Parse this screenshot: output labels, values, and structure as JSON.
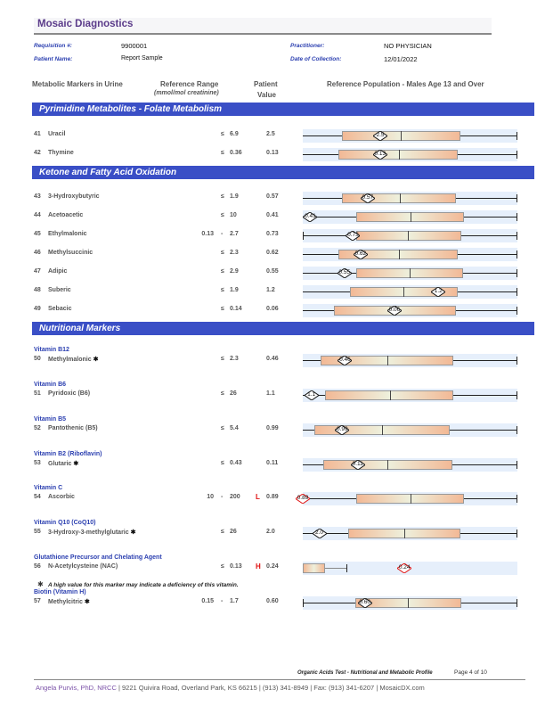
{
  "header": {
    "brand": "Mosaic Diagnostics",
    "requisition_label": "Requisition #:",
    "requisition": "9900001",
    "patient_label": "Patient Name:",
    "patient": "Report Sample",
    "practitioner_label": "Practitioner:",
    "practitioner": "NO PHYSICIAN",
    "collection_label": "Date of Collection:",
    "collection": "12/01/2022"
  },
  "columns": {
    "markers": "Metabolic Markers in Urine",
    "range": "Reference Range",
    "range_unit": "(mmol/mol creatinine)",
    "patient1": "Patient",
    "patient2": "Value",
    "population": "Reference Population - Males Age 13 and Over"
  },
  "sections": [
    {
      "title": "Pyrimidine Metabolites - Folate Metabolism"
    },
    {
      "title": "Ketone and Fatty Acid Oxidation"
    },
    {
      "title": "Nutritional Markers"
    }
  ],
  "colors": {
    "band": "#3a4fc6",
    "low_high": "#e01010",
    "brand": "#5b3b8a"
  },
  "rows": [
    {
      "num": "41",
      "name": "Uracil",
      "low": "",
      "op": "≤",
      "high": "6.9",
      "flag": "",
      "value": "2.5",
      "scale_pct": {
        "box": [
          18.4,
          73.4
        ],
        "median": 45.6,
        "marker": 36.1
      }
    },
    {
      "num": "42",
      "name": "Thymine",
      "low": "",
      "op": "≤",
      "high": "0.36",
      "flag": "",
      "value": "0.13",
      "scale_pct": {
        "box": [
          16.6,
          72.1
        ],
        "median": 44.8,
        "marker": 36
      }
    },
    {
      "num": "43",
      "name": "3-Hydroxybutyric",
      "low": "",
      "op": "≤",
      "high": "1.9",
      "flag": "",
      "value": "0.57",
      "scale_pct": {
        "box": [
          18.1,
          71.5
        ],
        "median": 45.2,
        "marker": 30.2
      }
    },
    {
      "num": "44",
      "name": "Acetoacetic",
      "low": "",
      "op": "≤",
      "high": "10",
      "flag": "",
      "value": "0.41",
      "scale_pct": {
        "box": [
          24.8,
          75
        ],
        "median": 50.2,
        "marker": 3.5
      }
    },
    {
      "num": "45",
      "name": "Ethylmalonic",
      "low": "0.13",
      "op": "-",
      "high": "2.7",
      "flag": "",
      "value": "0.73",
      "scale_pct": {
        "box": [
          24.8,
          73.7
        ],
        "median": 48.9,
        "marker": 23.4
      }
    },
    {
      "num": "46",
      "name": "Methylsuccinic",
      "low": "",
      "op": "≤",
      "high": "2.3",
      "flag": "",
      "value": "0.62",
      "scale_pct": {
        "box": [
          16.5,
          72.1
        ],
        "median": 44.8,
        "marker": 26.9
      }
    },
    {
      "num": "47",
      "name": "Adipic",
      "low": "",
      "op": "≤",
      "high": "2.9",
      "flag": "",
      "value": "0.55",
      "scale_pct": {
        "box": [
          24.8,
          74.5
        ],
        "median": 49.7,
        "marker": 19.4
      }
    },
    {
      "num": "48",
      "name": "Suberic",
      "low": "",
      "op": "≤",
      "high": "1.9",
      "flag": "",
      "value": "1.2",
      "scale_pct": {
        "box": [
          21.8,
          72.1
        ],
        "median": 47,
        "marker": 63.2
      }
    },
    {
      "num": "49",
      "name": "Sebacic",
      "low": "",
      "op": "≤",
      "high": "0.14",
      "flag": "",
      "value": "0.06",
      "scale_pct": {
        "box": [
          14.4,
          71.3
        ],
        "median": 43,
        "marker": 42.7
      }
    },
    {
      "group": "Vitamin B12",
      "num": "50",
      "name": "Methylmalonic",
      "star": true,
      "low": "",
      "op": "≤",
      "high": "2.3",
      "flag": "",
      "value": "0.46",
      "scale_pct": {
        "box": [
          8.5,
          70.3
        ],
        "median": 39.5,
        "marker": 19.7
      }
    },
    {
      "group": "Vitamin B6",
      "num": "51",
      "name": "Pyridoxic (B6)",
      "low": "",
      "op": "≤",
      "high": "26",
      "flag": "",
      "value": "1.1",
      "scale_pct": {
        "box": [
          10.3,
          70.3
        ],
        "median": 40.6,
        "marker": 4
      }
    },
    {
      "group": "Vitamin B5",
      "num": "52",
      "name": "Pantothenic (B5)",
      "low": "",
      "op": "≤",
      "high": "5.4",
      "flag": "",
      "value": "0.99",
      "scale_pct": {
        "box": [
          5.2,
          68.5
        ],
        "median": 37.1,
        "marker": 18.4
      }
    },
    {
      "group": "Vitamin B2 (Riboflavin)",
      "num": "53",
      "name": "Glutaric",
      "star": true,
      "low": "",
      "op": "≤",
      "high": "0.43",
      "flag": "",
      "value": "0.11",
      "scale_pct": {
        "box": [
          9.4,
          69.7
        ],
        "median": 39.4,
        "marker": 25.6
      }
    },
    {
      "group": "Vitamin C",
      "num": "54",
      "name": "Ascorbic",
      "low": "10",
      "op": "-",
      "high": "200",
      "flag": "L",
      "value": "0.89",
      "scale_pct": {
        "box": [
          24.8,
          75
        ],
        "median": 50.2,
        "marker": 0
      }
    },
    {
      "group": "Vitamin Q10 (CoQ10)",
      "num": "55",
      "name": "3-Hydroxy-3-methylglutaric",
      "star": true,
      "low": "",
      "op": "≤",
      "high": "26",
      "flag": "",
      "value": "2.0",
      "scale_pct": {
        "box": [
          21.3,
          73.4
        ],
        "median": 47.4,
        "marker": 7.7
      }
    },
    {
      "group": "Glutathione Precursor and Chelating Agent",
      "num": "56",
      "name": "N-Acetylcysteine (NAC)",
      "low": "",
      "op": "≤",
      "high": "0.13",
      "flag": "H",
      "value": "0.24",
      "scale_pct": {
        "box": [
          0,
          10.3
        ],
        "whisker_end": 20.2,
        "marker": 47.4
      }
    },
    {
      "group": "Biotin (Vitamin H)",
      "num": "57",
      "name": "Methylcitric",
      "star": true,
      "low": "0.15",
      "op": "-",
      "high": "1.7",
      "flag": "",
      "value": "0.60",
      "scale_pct": {
        "box": [
          24.5,
          73.7
        ],
        "median": 48.9,
        "marker": 28.9
      }
    }
  ],
  "footnote": "A high value for this marker may indicate a deficiency of this vitamin.",
  "footer": {
    "report": "Organic Acids Test - Nutritional and Metabolic Profile",
    "page": "Page 4 of 10",
    "name": "Angela Purvis, PhD, NRCC",
    "address": "| 9221 Quivira Road, Overland Park, KS 66215 | (913) 341-8949 | Fax: (913) 341-6207 | MosaicDX.com"
  }
}
